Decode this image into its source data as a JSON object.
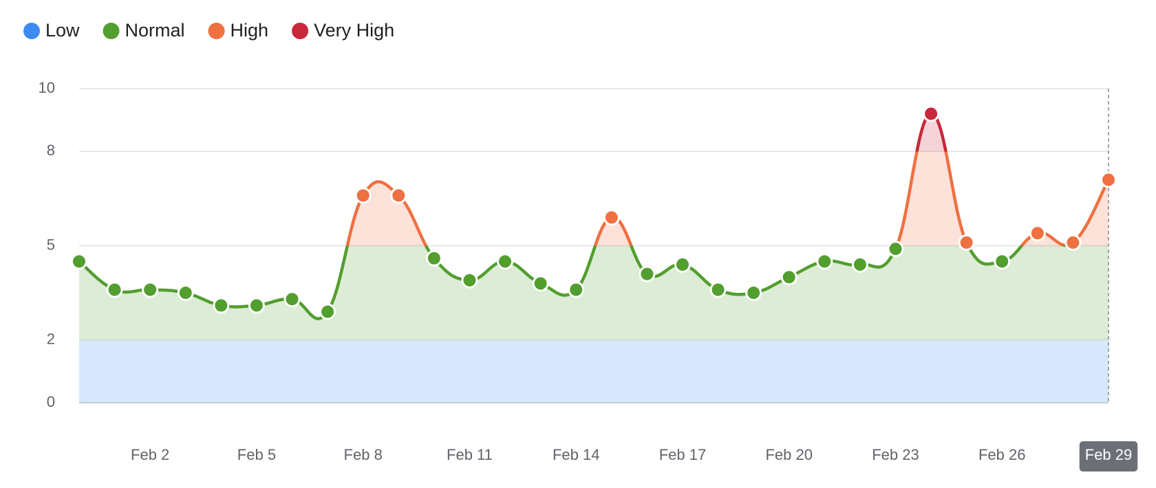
{
  "chart_data": {
    "type": "line",
    "categories": [
      null,
      null,
      "Feb 2",
      null,
      null,
      "Feb 5",
      null,
      null,
      "Feb 8",
      null,
      null,
      "Feb 11",
      null,
      null,
      "Feb 14",
      null,
      null,
      "Feb 17",
      null,
      null,
      "Feb 20",
      null,
      null,
      "Feb 23",
      null,
      null,
      "Feb 26",
      null,
      null,
      "Feb 29"
    ],
    "values": [
      4.5,
      3.6,
      3.6,
      3.5,
      3.1,
      3.1,
      3.3,
      2.9,
      6.6,
      6.6,
      4.6,
      3.9,
      4.5,
      3.8,
      3.6,
      5.9,
      4.1,
      4.4,
      3.6,
      3.5,
      4.0,
      4.5,
      4.4,
      4.9,
      9.2,
      5.1,
      4.5,
      5.4,
      5.1,
      7.1
    ],
    "zones": [
      {
        "name": "Low",
        "color": "#3d8bf0",
        "min": 0,
        "max": 2
      },
      {
        "name": "Normal",
        "color": "#529e2f",
        "min": 2,
        "max": 5
      },
      {
        "name": "High",
        "color": "#ef7040",
        "min": 5,
        "max": 8
      },
      {
        "name": "Very High",
        "color": "#c8283a",
        "min": 8,
        "max": 10
      }
    ],
    "ylim": [
      0,
      10
    ],
    "yticks": [
      0,
      2,
      5,
      8,
      10
    ],
    "grid": true
  }
}
